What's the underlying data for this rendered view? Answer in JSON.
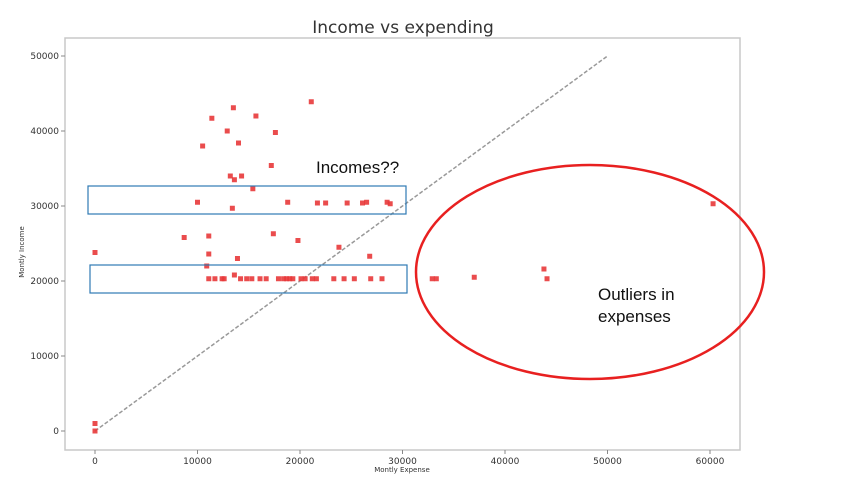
{
  "chart_data": {
    "type": "scatter",
    "title": "Income vs expending",
    "xlabel": "Montly Expense",
    "ylabel": "Montly Income",
    "xlim": [
      -3000,
      63000
    ],
    "ylim": [
      -2000,
      52000
    ],
    "xticks": [
      0,
      10000,
      20000,
      30000,
      40000,
      50000,
      60000
    ],
    "yticks": [
      0,
      10000,
      20000,
      30000,
      40000,
      50000
    ],
    "marker_color": "#e8393a",
    "reference_line": {
      "x": [
        0,
        50000
      ],
      "y": [
        0,
        50000
      ],
      "style": "dashed",
      "color": "#999999"
    },
    "points": [
      [
        0,
        1000
      ],
      [
        0,
        0
      ],
      [
        0,
        23800
      ],
      [
        8700,
        25800
      ],
      [
        10000,
        30500
      ],
      [
        10500,
        38000
      ],
      [
        10900,
        22000
      ],
      [
        11100,
        26000
      ],
      [
        11100,
        23600
      ],
      [
        11100,
        20300
      ],
      [
        11400,
        41700
      ],
      [
        11700,
        20300
      ],
      [
        12400,
        20300
      ],
      [
        12600,
        20300
      ],
      [
        12900,
        40000
      ],
      [
        13200,
        34000
      ],
      [
        13400,
        29700
      ],
      [
        13500,
        43100
      ],
      [
        13600,
        33500
      ],
      [
        13600,
        20800
      ],
      [
        13900,
        23000
      ],
      [
        14000,
        38400
      ],
      [
        14200,
        20300
      ],
      [
        14300,
        34000
      ],
      [
        14800,
        20300
      ],
      [
        15300,
        20300
      ],
      [
        15400,
        32300
      ],
      [
        15700,
        42000
      ],
      [
        16100,
        20300
      ],
      [
        16700,
        20300
      ],
      [
        17200,
        35400
      ],
      [
        17400,
        26300
      ],
      [
        17600,
        39800
      ],
      [
        17900,
        20300
      ],
      [
        18400,
        20300
      ],
      [
        18700,
        20300
      ],
      [
        18800,
        30500
      ],
      [
        19000,
        20300
      ],
      [
        19300,
        20300
      ],
      [
        19800,
        25400
      ],
      [
        20100,
        20300
      ],
      [
        20500,
        20300
      ],
      [
        21100,
        43900
      ],
      [
        21200,
        20300
      ],
      [
        21600,
        20300
      ],
      [
        21700,
        30400
      ],
      [
        22500,
        30400
      ],
      [
        23300,
        20300
      ],
      [
        23800,
        24500
      ],
      [
        24300,
        20300
      ],
      [
        24600,
        30400
      ],
      [
        25300,
        20300
      ],
      [
        26100,
        30400
      ],
      [
        26500,
        30500
      ],
      [
        26800,
        23300
      ],
      [
        26900,
        20300
      ],
      [
        28000,
        20300
      ],
      [
        28500,
        30500
      ],
      [
        28800,
        30300
      ],
      [
        32900,
        20300
      ],
      [
        33300,
        20300
      ],
      [
        37000,
        20500
      ],
      [
        43800,
        21600
      ],
      [
        44100,
        20300
      ],
      [
        60300,
        30300
      ]
    ]
  },
  "annotations": {
    "incomes_note": "Incomes??",
    "outliers_note_line1": "Outliers in",
    "outliers_note_line2": "expenses"
  },
  "colors": {
    "box_stroke": "#2f7ab3",
    "ellipse_stroke": "#e82020"
  }
}
